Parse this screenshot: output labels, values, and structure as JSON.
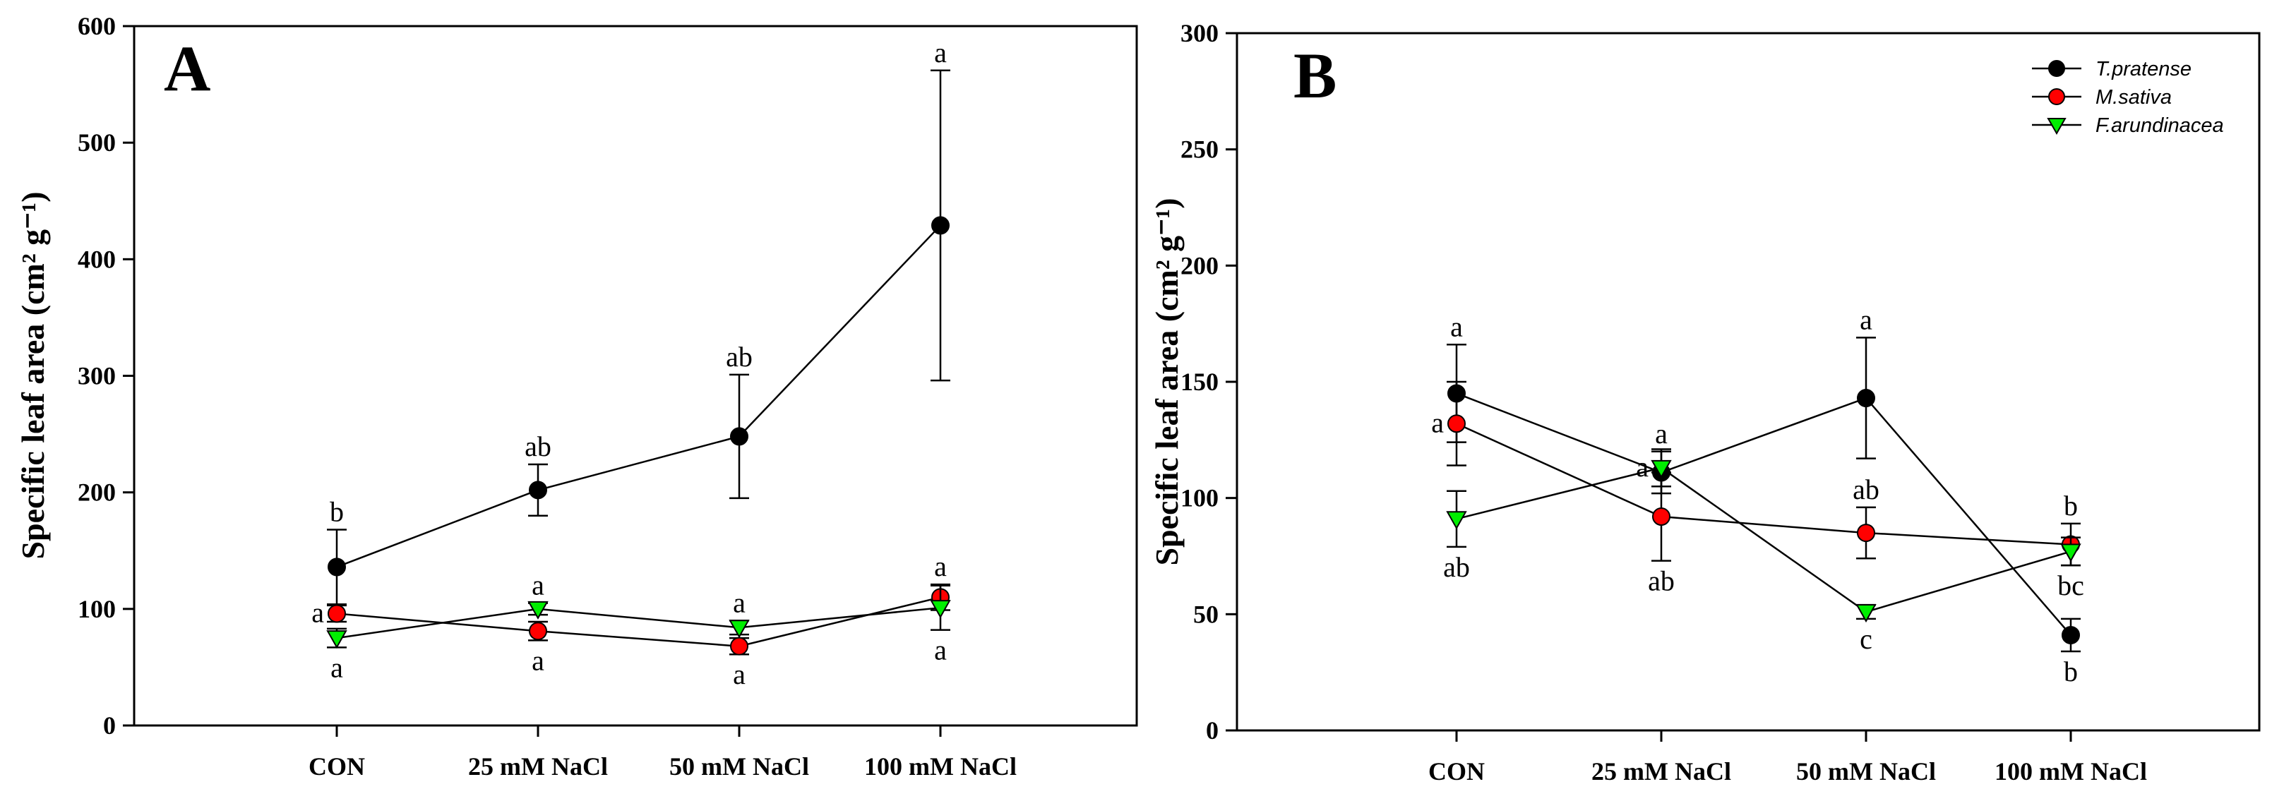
{
  "chart_data": [
    {
      "type": "line",
      "panel_label": "A",
      "ylabel": "Specific leaf area (cm² g⁻¹)",
      "xlabel": "",
      "ylim": [
        0,
        600
      ],
      "yticks": [
        "0",
        "100",
        "200",
        "300",
        "400",
        "500",
        "600"
      ],
      "categories": [
        "CON",
        "25 mM NaCl",
        "50 mM NaCl",
        "100 mM NaCl"
      ],
      "series": [
        {
          "name": "T.pratense",
          "color": "#000000",
          "marker": "circle",
          "values": [
            136,
            202,
            248,
            429
          ],
          "errors": [
            32,
            22,
            53,
            133
          ],
          "letters": [
            "b",
            "ab",
            "ab",
            "a"
          ],
          "letter_pos": [
            "above",
            "above",
            "above",
            "above"
          ]
        },
        {
          "name": "M.sativa",
          "color": "#ff0000",
          "marker": "circle",
          "values": [
            96,
            81,
            68,
            110
          ],
          "errors": [
            7,
            8,
            7,
            11
          ],
          "letters": [
            "a",
            "a",
            "a",
            "a"
          ],
          "letter_pos": [
            "left",
            "below",
            "below",
            "above"
          ]
        },
        {
          "name": "F.arundinacea",
          "color": "#00ee00",
          "marker": "triangle-down",
          "values": [
            75,
            100,
            84,
            101
          ],
          "errors": [
            8,
            5,
            6,
            19
          ],
          "letters": [
            "a",
            "a",
            "a",
            "a"
          ],
          "letter_pos": [
            "below",
            "above",
            "above",
            "below"
          ]
        }
      ]
    },
    {
      "type": "line",
      "panel_label": "B",
      "ylabel": "Specific leaf area (cm² g⁻¹)",
      "xlabel": "",
      "ylim": [
        0,
        300
      ],
      "yticks": [
        "0",
        "50",
        "100",
        "150",
        "200",
        "250",
        "300"
      ],
      "categories": [
        "CON",
        "25 mM NaCl",
        "50 mM NaCl",
        "100 mM NaCl"
      ],
      "legend": {
        "position": "top-right",
        "entries": [
          "T.pratense",
          "M.sativa",
          "F.arundinacea"
        ]
      },
      "series": [
        {
          "name": "T.pratense",
          "color": "#000000",
          "marker": "circle",
          "values": [
            145,
            111,
            143,
            41
          ],
          "errors": [
            21,
            9,
            26,
            7
          ],
          "letters": [
            "a",
            "a",
            "a",
            "b"
          ],
          "letter_pos": [
            "above",
            "above",
            "above",
            "below"
          ]
        },
        {
          "name": "M.sativa",
          "color": "#ff0000",
          "marker": "circle",
          "values": [
            132,
            92,
            85,
            80
          ],
          "errors": [
            18,
            19,
            11,
            9
          ],
          "letters": [
            "a",
            "ab",
            "ab",
            "b"
          ],
          "letter_pos": [
            "left",
            "below",
            "above",
            "above"
          ]
        },
        {
          "name": "F.arundinacea",
          "color": "#00ee00",
          "marker": "triangle-down",
          "values": [
            91,
            113,
            51,
            77
          ],
          "errors": [
            12,
            8,
            3,
            6
          ],
          "letters": [
            "ab",
            "a",
            "c",
            "bc"
          ],
          "letter_pos": [
            "below",
            "left",
            "below",
            "below"
          ]
        }
      ]
    }
  ]
}
